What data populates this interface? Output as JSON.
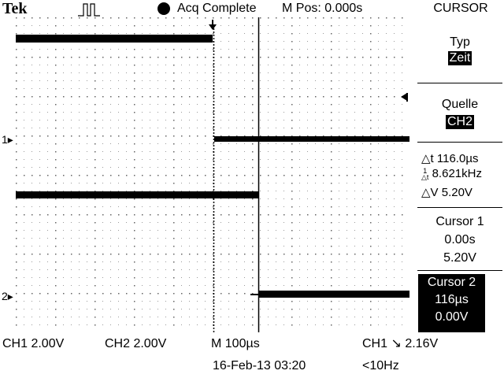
{
  "header": {
    "brand": "Tek",
    "trigger_icon": "trigger-state-pulse-icon",
    "acq_status": "Acq Complete",
    "m_pos": "M Pos: 0.000s",
    "menu_title": "CURSOR"
  },
  "side_menu": {
    "type_label": "Typ",
    "type_value": "Zeit",
    "source_label": "Quelle",
    "source_value": "CH2",
    "delta_t": "116.0µs",
    "inv_delta_t": "8.621kHz",
    "delta_v": "5.20V",
    "cursor1": {
      "label": "Cursor 1",
      "time": "0.00s",
      "volt": "5.20V"
    },
    "cursor2": {
      "label": "Cursor 2",
      "time": "116µs",
      "volt": "0.00V"
    }
  },
  "channels": {
    "ch1_marker": "1",
    "ch2_marker": "2"
  },
  "footer": {
    "ch1_scale": "CH1  2.00V",
    "ch2_scale": "CH2  2.00V",
    "timebase": "M 100µs",
    "trigger_src": "CH1",
    "trigger_level": "2.16V",
    "date_time": "16-Feb-13 03:20",
    "freq": "<10Hz"
  },
  "colors": {
    "foreground": "#000000",
    "background": "#ffffff"
  }
}
